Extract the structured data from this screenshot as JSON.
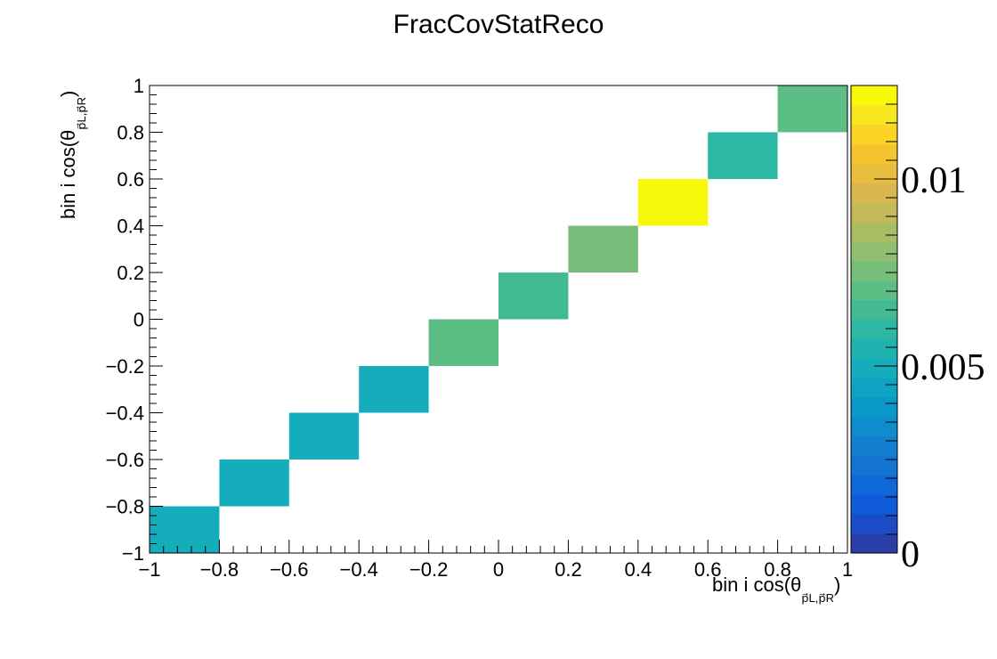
{
  "chart_data": {
    "type": "heatmap",
    "title": "FracCovStatReco",
    "xlabel": {
      "prefix": "bin i cos(θ",
      "subscript": "p⃗L,p⃗R",
      "suffix": ")"
    },
    "ylabel": {
      "prefix": "bin i cos(θ",
      "subscript": "p⃗L,p⃗R",
      "suffix": ")"
    },
    "xlim": [
      -1,
      1
    ],
    "ylim": [
      -1,
      1
    ],
    "xticks": [
      "−1",
      "−0.8",
      "−0.6",
      "−0.4",
      "−0.2",
      "0",
      "0.2",
      "0.4",
      "0.6",
      "0.8",
      "1"
    ],
    "yticks": [
      "−1",
      "−0.8",
      "−0.6",
      "−0.4",
      "−0.2",
      "0",
      "0.2",
      "0.4",
      "0.6",
      "0.8",
      "1"
    ],
    "colorbar": {
      "zlim": [
        0,
        0.0125
      ],
      "tick_values": [
        0,
        0.005,
        0.01
      ],
      "tick_labels": [
        "0",
        "0.005",
        "0.01"
      ]
    },
    "cells": [
      {
        "x": [
          -1.0,
          -0.8
        ],
        "y": [
          -1.0,
          -0.8
        ],
        "value": 0.005
      },
      {
        "x": [
          -0.8,
          -0.6
        ],
        "y": [
          -0.8,
          -0.6
        ],
        "value": 0.005
      },
      {
        "x": [
          -0.6,
          -0.4
        ],
        "y": [
          -0.6,
          -0.4
        ],
        "value": 0.005
      },
      {
        "x": [
          -0.4,
          -0.2
        ],
        "y": [
          -0.4,
          -0.2
        ],
        "value": 0.005
      },
      {
        "x": [
          -0.2,
          0.0
        ],
        "y": [
          -0.2,
          0.0
        ],
        "value": 0.0068
      },
      {
        "x": [
          0.0,
          0.2
        ],
        "y": [
          0.0,
          0.2
        ],
        "value": 0.0063
      },
      {
        "x": [
          0.2,
          0.4
        ],
        "y": [
          0.2,
          0.4
        ],
        "value": 0.0075
      },
      {
        "x": [
          0.4,
          0.6
        ],
        "y": [
          0.4,
          0.6
        ],
        "value": 0.0122
      },
      {
        "x": [
          0.6,
          0.8
        ],
        "y": [
          0.6,
          0.8
        ],
        "value": 0.0058
      },
      {
        "x": [
          0.8,
          1.0
        ],
        "y": [
          0.8,
          1.0
        ],
        "value": 0.0068
      }
    ]
  },
  "palette": [
    "#2a3ea8",
    "#1c4bc6",
    "#0f5bd9",
    "#1068d8",
    "#1474d4",
    "#137fd0",
    "#0e8ccb",
    "#0a98c8",
    "#0ea3c2",
    "#15acbc",
    "#1fb3b0",
    "#2db8a3",
    "#43bb92",
    "#5cbd85",
    "#76be79",
    "#91bf6f",
    "#abbd64",
    "#c4ba5a",
    "#d9b74e",
    "#e9bd3d",
    "#f5c52d",
    "#fbd526",
    "#f8e71f",
    "#f8f80b"
  ]
}
